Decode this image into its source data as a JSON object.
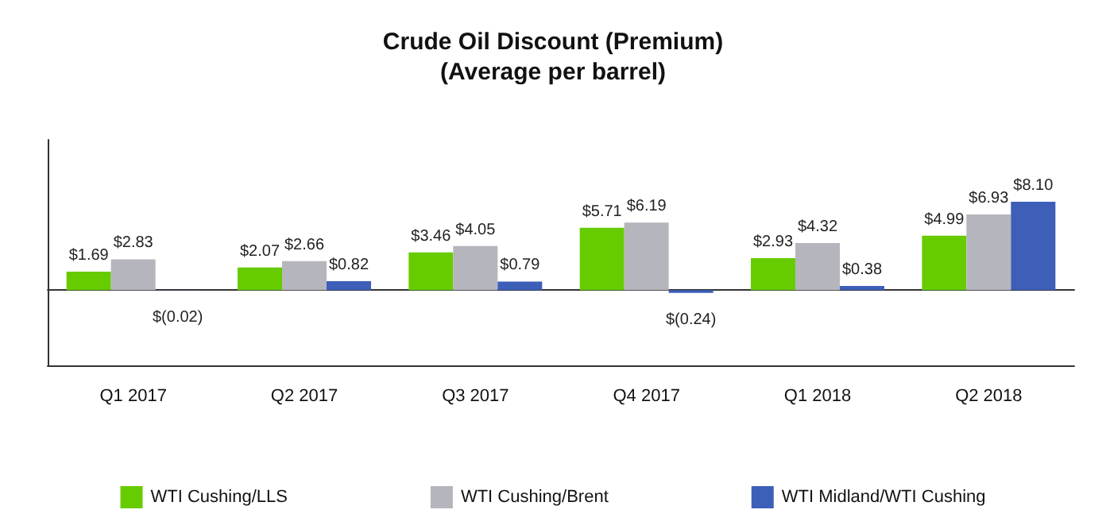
{
  "chart_data": {
    "type": "bar",
    "title": "Crude Oil Discount (Premium)",
    "subtitle": "(Average per barrel)",
    "categories": [
      "Q1 2017",
      "Q2 2017",
      "Q3 2017",
      "Q4 2017",
      "Q1 2018",
      "Q2 2018"
    ],
    "series": [
      {
        "name": "WTI Cushing/LLS",
        "color": "#66cc00",
        "values": [
          1.69,
          2.07,
          3.46,
          5.71,
          2.93,
          4.99
        ],
        "value_labels": [
          "$1.69",
          "$2.07",
          "$3.46",
          "$5.71",
          "$2.93",
          "$4.99"
        ]
      },
      {
        "name": "WTI Cushing/Brent",
        "color": "#b5b5bd",
        "values": [
          2.83,
          2.66,
          4.05,
          6.19,
          4.32,
          6.93
        ],
        "value_labels": [
          "$2.83",
          "$2.66",
          "$4.05",
          "$6.19",
          "$4.32",
          "$6.93"
        ]
      },
      {
        "name": "WTI Midland/WTI Cushing",
        "color": "#3d5fb8",
        "values": [
          -0.02,
          0.82,
          0.79,
          -0.24,
          0.38,
          8.1
        ],
        "value_labels": [
          "$(0.02)",
          "$0.82",
          "$0.79",
          "$(0.24)",
          "$0.38",
          "$8.10"
        ]
      }
    ],
    "legend": "bottom",
    "grid": false
  }
}
